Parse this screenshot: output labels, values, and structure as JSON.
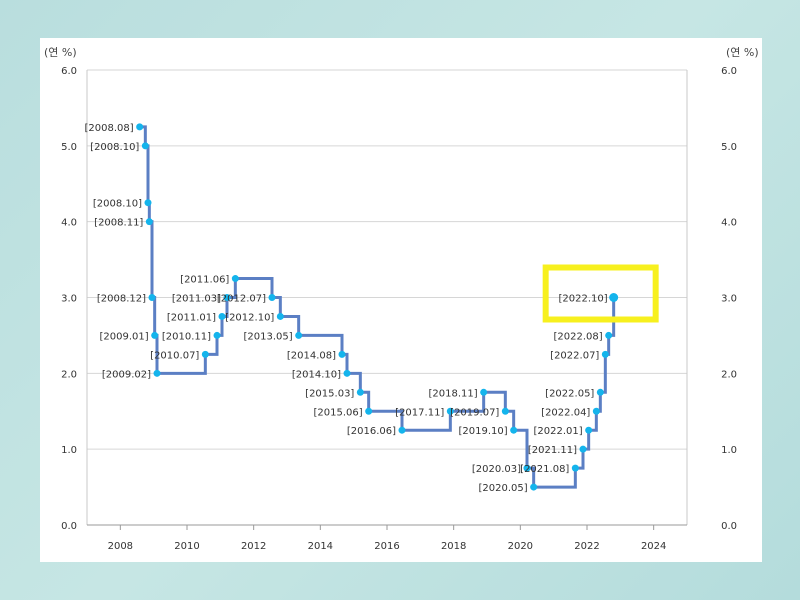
{
  "chart_data": {
    "type": "line",
    "step": true,
    "y_unit_left": "(연 %)",
    "y_unit_right": "(연 %)",
    "ylim": [
      0,
      6
    ],
    "yticks": [
      "0.0",
      "1.0",
      "2.0",
      "3.0",
      "4.0",
      "5.0",
      "6.0"
    ],
    "xlim": [
      2007,
      2025
    ],
    "xticks": [
      "2008",
      "2010",
      "2012",
      "2014",
      "2016",
      "2018",
      "2020",
      "2022",
      "2024"
    ],
    "grid": true,
    "line_color": "#5b7fc4",
    "marker_color": "#14b4ec",
    "highlight_color": "#f7f01e",
    "highlighted_label": "[2022.10]",
    "points": [
      {
        "label": "[2008.08]",
        "x": 2008.58,
        "y": 5.25
      },
      {
        "label": "[2008.10]",
        "x": 2008.75,
        "y": 5.0
      },
      {
        "label": "[2008.10]",
        "x": 2008.83,
        "y": 4.25
      },
      {
        "label": "[2008.11]",
        "x": 2008.87,
        "y": 4.0
      },
      {
        "label": "[2008.12]",
        "x": 2008.95,
        "y": 3.0
      },
      {
        "label": "[2009.01]",
        "x": 2009.03,
        "y": 2.5
      },
      {
        "label": "[2009.02]",
        "x": 2009.1,
        "y": 2.0
      },
      {
        "label": "[2010.07]",
        "x": 2010.55,
        "y": 2.25
      },
      {
        "label": "[2010.11]",
        "x": 2010.9,
        "y": 2.5
      },
      {
        "label": "[2011.01]",
        "x": 2011.05,
        "y": 2.75
      },
      {
        "label": "[2011.03]",
        "x": 2011.2,
        "y": 3.0
      },
      {
        "label": "[2011.06]",
        "x": 2011.45,
        "y": 3.25
      },
      {
        "label": "[2012.07]",
        "x": 2012.55,
        "y": 3.0
      },
      {
        "label": "[2012.10]",
        "x": 2012.8,
        "y": 2.75
      },
      {
        "label": "[2013.05]",
        "x": 2013.35,
        "y": 2.5
      },
      {
        "label": "[2014.08]",
        "x": 2014.65,
        "y": 2.25
      },
      {
        "label": "[2014.10]",
        "x": 2014.8,
        "y": 2.0
      },
      {
        "label": "[2015.03]",
        "x": 2015.2,
        "y": 1.75
      },
      {
        "label": "[2015.06]",
        "x": 2015.45,
        "y": 1.5
      },
      {
        "label": "[2016.06]",
        "x": 2016.45,
        "y": 1.25
      },
      {
        "label": "[2017.11]",
        "x": 2017.9,
        "y": 1.5
      },
      {
        "label": "[2018.11]",
        "x": 2018.9,
        "y": 1.75
      },
      {
        "label": "[2019.07]",
        "x": 2019.55,
        "y": 1.5
      },
      {
        "label": "[2019.10]",
        "x": 2019.8,
        "y": 1.25
      },
      {
        "label": "[2020.03]",
        "x": 2020.2,
        "y": 0.75
      },
      {
        "label": "[2020.05]",
        "x": 2020.4,
        "y": 0.5
      },
      {
        "label": "[2021.08]",
        "x": 2021.65,
        "y": 0.75
      },
      {
        "label": "[2021.11]",
        "x": 2021.88,
        "y": 1.0
      },
      {
        "label": "[2022.01]",
        "x": 2022.05,
        "y": 1.25
      },
      {
        "label": "[2022.04]",
        "x": 2022.28,
        "y": 1.5
      },
      {
        "label": "[2022.05]",
        "x": 2022.4,
        "y": 1.75
      },
      {
        "label": "[2022.07]",
        "x": 2022.55,
        "y": 2.25
      },
      {
        "label": "[2022.08]",
        "x": 2022.65,
        "y": 2.5
      },
      {
        "label": "[2022.10]",
        "x": 2022.8,
        "y": 3.0
      }
    ]
  }
}
